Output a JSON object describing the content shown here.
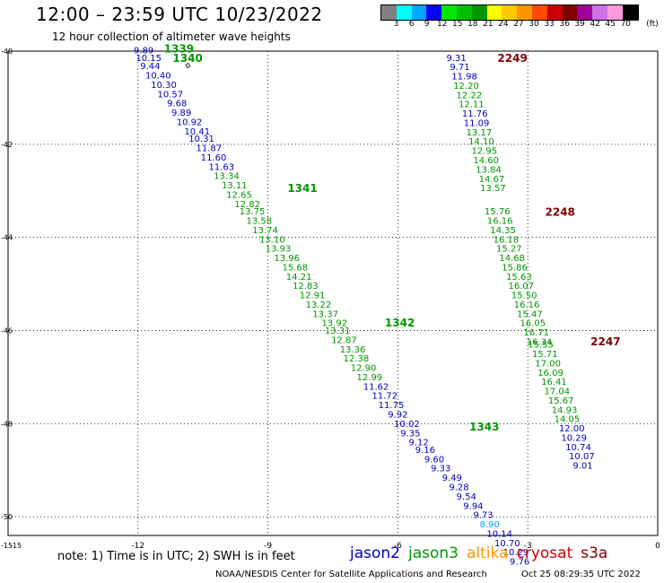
{
  "title": "12:00 – 23:59 UTC 10/23/2022",
  "subtitle": "12 hour collection of altimeter wave heights",
  "legend": {
    "unit": "(ft)",
    "colors": [
      "#7f7f7f",
      "#00ffff",
      "#00a6ff",
      "#0000ff",
      "#00e600",
      "#00be00",
      "#009600",
      "#ffff00",
      "#ffc800",
      "#ff9600",
      "#ff4b00",
      "#cc0000",
      "#800000",
      "#a0009a",
      "#cd73e6",
      "#ff9bdc",
      "#000000"
    ],
    "labels": [
      "3",
      "6",
      "9",
      "12",
      "15",
      "18",
      "21",
      "24",
      "27",
      "30",
      "33",
      "36",
      "39",
      "42",
      "45",
      "70"
    ]
  },
  "axes": {
    "x_ticks": [
      "-12",
      "-9",
      "-6",
      "-3",
      "0"
    ],
    "y_ticks": [
      "-40",
      "-42",
      "-44",
      "-46",
      "-48",
      "-50"
    ],
    "corner_labels": [
      "-15",
      "-15"
    ]
  },
  "mission_colors": {
    "jason2": "#0000bb",
    "jason3": "#009600",
    "altika": "#ff9600",
    "cryosat": "#cc0000",
    "s3a": "#800000",
    "other": "#00a6ff"
  },
  "tracks": [
    {
      "id": "1339",
      "mission": "jason3",
      "label": {
        "text": "1339",
        "lon": -11.4,
        "lat": -39.95
      },
      "points": [
        [
          "9.89",
          "jason2",
          -12.1,
          -39.97
        ]
      ]
    },
    {
      "id": "1340",
      "mission": "jason3",
      "label": {
        "text": "1340",
        "lon": -11.2,
        "lat": -40.15
      },
      "points": [
        [
          "10.15",
          "jason2",
          -12.05,
          -40.13
        ],
        [
          "9.44",
          "jason2",
          -11.95,
          -40.31
        ],
        [
          "10.40",
          "jason2",
          -11.83,
          -40.51
        ],
        [
          "10.30",
          "jason2",
          -11.7,
          -40.71
        ],
        [
          "10.57",
          "jason2",
          -11.55,
          -40.91
        ],
        [
          "9.68",
          "jason2",
          -11.33,
          -41.11
        ],
        [
          "9.89",
          "jason2",
          -11.23,
          -41.31
        ],
        [
          "10.92",
          "jason2",
          -11.11,
          -41.51
        ],
        [
          "10.41",
          "jason2",
          -10.93,
          -41.71
        ],
        [
          "10.31",
          "jason2",
          -10.83,
          -41.87
        ],
        [
          "11.87",
          "jason2",
          -10.66,
          -42.07
        ],
        [
          "11.60",
          "jason2",
          -10.55,
          -42.27
        ],
        [
          "11.63",
          "jason2",
          -10.37,
          -42.47
        ],
        [
          "13.34",
          "jason3",
          -10.25,
          -42.67
        ],
        [
          "13.11",
          "jason3",
          -10.07,
          -42.87
        ],
        [
          "12.65",
          "jason3",
          -9.96,
          -43.07
        ],
        [
          "12.82",
          "jason3",
          -9.77,
          -43.27
        ],
        [
          "13.75",
          "jason3",
          -9.66,
          -43.43
        ],
        [
          "13.58",
          "jason3",
          -9.5,
          -43.63
        ],
        [
          "13.74",
          "jason3",
          -9.36,
          -43.83
        ],
        [
          "13.10",
          "jason3",
          -9.2,
          -44.03
        ],
        [
          "13.93",
          "jason3",
          -9.06,
          -44.23
        ],
        [
          "13.96",
          "jason3",
          -8.86,
          -44.43
        ]
      ]
    },
    {
      "id": "1341",
      "mission": "jason3",
      "label": {
        "text": "1341",
        "lon": -8.55,
        "lat": -42.95
      },
      "points": [
        [
          "15.68",
          "jason3",
          -8.67,
          -44.63
        ],
        [
          "14.21",
          "jason3",
          -8.58,
          -44.83
        ],
        [
          "12.83",
          "jason3",
          -8.43,
          -45.03
        ],
        [
          "12.91",
          "jason3",
          -8.27,
          -45.23
        ],
        [
          "13.22",
          "jason3",
          -8.13,
          -45.43
        ],
        [
          "13.37",
          "jason3",
          -7.97,
          -45.63
        ],
        [
          "13.92",
          "jason3",
          -7.76,
          -45.83
        ],
        [
          "13.31",
          "jason3",
          -7.69,
          -45.99
        ],
        [
          "12.87",
          "jason3",
          -7.54,
          -46.19
        ],
        [
          "13.36",
          "jason3",
          -7.34,
          -46.39
        ],
        [
          "12.38",
          "jason3",
          -7.26,
          -46.59
        ],
        [
          "12.90",
          "jason3",
          -7.09,
          -46.79
        ],
        [
          "12.99",
          "jason3",
          -6.95,
          -46.99
        ]
      ]
    },
    {
      "id": "1342",
      "mission": "jason3",
      "label": {
        "text": "1342",
        "lon": -6.3,
        "lat": -45.84
      },
      "points": [
        [
          "11.62",
          "jason2",
          -6.8,
          -47.19
        ],
        [
          "11.72",
          "jason2",
          -6.6,
          -47.39
        ],
        [
          "11.75",
          "jason2",
          -6.45,
          -47.59
        ],
        [
          "9.92",
          "jason2",
          -6.23,
          -47.79
        ],
        [
          "10.02",
          "jason2",
          -6.09,
          -47.99
        ],
        [
          "9.35",
          "jason2",
          -5.94,
          -48.19
        ],
        [
          "9.12",
          "jason2",
          -5.75,
          -48.39
        ],
        [
          "9.16",
          "jason2",
          -5.6,
          -48.55
        ],
        [
          "9.60",
          "jason2",
          -5.39,
          -48.75
        ],
        [
          "9.33",
          "jason2",
          -5.24,
          -48.95
        ],
        [
          "9.49",
          "jason2",
          -4.98,
          -49.15
        ],
        [
          "9.28",
          "jason2",
          -4.82,
          -49.35
        ],
        [
          "9.54",
          "jason2",
          -4.65,
          -49.55
        ],
        [
          "9.94",
          "jason2",
          -4.49,
          -49.75
        ],
        [
          "9.73",
          "jason2",
          -4.26,
          -49.95
        ],
        [
          "8.90",
          "other",
          -4.11,
          -50.15
        ],
        [
          "10.14",
          "jason2",
          -3.95,
          -50.35
        ],
        [
          "10.70",
          "jason2",
          -3.77,
          -50.55
        ],
        [
          "10.29",
          "jason2",
          -3.57,
          -50.75
        ],
        [
          "9.76",
          "jason2",
          -3.42,
          -50.95
        ]
      ]
    },
    {
      "id": "1343",
      "mission": "jason3",
      "label": {
        "text": "1343",
        "lon": -4.35,
        "lat": -48.07
      },
      "points": []
    },
    {
      "id": "2249",
      "mission": "s3a",
      "label": {
        "text": "2249",
        "lon": -3.7,
        "lat": -40.15
      },
      "points": [
        [
          "9.31",
          "jason2",
          -4.88,
          -40.13
        ],
        [
          "9.71",
          "jason2",
          -4.8,
          -40.33
        ],
        [
          "11.98",
          "jason2",
          -4.76,
          -40.53
        ],
        [
          "12.20",
          "jason3",
          -4.72,
          -40.73
        ],
        [
          "12.22",
          "jason3",
          -4.65,
          -40.93
        ],
        [
          "12.11",
          "jason3",
          -4.6,
          -41.13
        ],
        [
          "11.76",
          "jason2",
          -4.52,
          -41.33
        ],
        [
          "11.09",
          "jason2",
          -4.48,
          -41.53
        ],
        [
          "13.17",
          "jason3",
          -4.42,
          -41.73
        ],
        [
          "14.10",
          "jason3",
          -4.37,
          -41.93
        ],
        [
          "12.95",
          "jason3",
          -4.3,
          -42.13
        ],
        [
          "14.60",
          "jason3",
          -4.26,
          -42.33
        ],
        [
          "13.84",
          "jason3",
          -4.2,
          -42.53
        ],
        [
          "14.67",
          "jason3",
          -4.13,
          -42.73
        ],
        [
          "13.57",
          "jason3",
          -4.1,
          -42.93
        ]
      ]
    },
    {
      "id": "2248",
      "mission": "s3a",
      "label": {
        "text": "2248",
        "lon": -2.6,
        "lat": -43.46
      },
      "points": [
        [
          "15.76",
          "jason3",
          -4.0,
          -43.43
        ],
        [
          "16.16",
          "jason3",
          -3.94,
          -43.63
        ],
        [
          "14.35",
          "jason3",
          -3.87,
          -43.83
        ],
        [
          "16.18",
          "jason3",
          -3.8,
          -44.03
        ],
        [
          "15.27",
          "jason3",
          -3.73,
          -44.23
        ],
        [
          "14.68",
          "jason3",
          -3.66,
          -44.43
        ],
        [
          "15.86",
          "jason3",
          -3.6,
          -44.63
        ],
        [
          "15.63",
          "jason3",
          -3.5,
          -44.83
        ],
        [
          "16.07",
          "jason3",
          -3.45,
          -45.03
        ],
        [
          "15.50",
          "jason3",
          -3.38,
          -45.23
        ],
        [
          "16.16",
          "jason3",
          -3.32,
          -45.43
        ],
        [
          "15.47",
          "jason3",
          -3.25,
          -45.63
        ],
        [
          "16.05",
          "jason3",
          -3.18,
          -45.83
        ],
        [
          "16.71",
          "jason3",
          -3.1,
          -46.03
        ],
        [
          "16.34",
          "jason3",
          -3.03,
          -46.23
        ],
        [
          "15.55",
          "jason3",
          -3.0,
          -46.29
        ],
        [
          "15.71",
          "jason3",
          -2.9,
          -46.49
        ],
        [
          "17.00",
          "jason3",
          -2.83,
          -46.69
        ],
        [
          "16.09",
          "jason3",
          -2.77,
          -46.89
        ],
        [
          "16.41",
          "jason3",
          -2.69,
          -47.09
        ],
        [
          "17.04",
          "jason3",
          -2.62,
          -47.29
        ],
        [
          "15.67",
          "jason3",
          -2.53,
          -47.49
        ],
        [
          "14.93",
          "jason3",
          -2.45,
          -47.69
        ],
        [
          "14.05",
          "jason3",
          -2.39,
          -47.89
        ],
        [
          "12.00",
          "jason2",
          -2.28,
          -48.09
        ],
        [
          "10.29",
          "jason2",
          -2.23,
          -48.29
        ],
        [
          "10.74",
          "jason2",
          -2.13,
          -48.49
        ],
        [
          "10.07",
          "jason2",
          -2.05,
          -48.69
        ],
        [
          "9.01",
          "jason2",
          -1.96,
          -48.89
        ]
      ]
    },
    {
      "id": "2247",
      "mission": "s3a",
      "label": {
        "text": "2247",
        "lon": -1.55,
        "lat": -46.24
      },
      "points": []
    }
  ],
  "note": "note: 1) Time is in UTC; 2) SWH is in feet",
  "missions": [
    "jason2",
    "jason3",
    "altika",
    "cryosat",
    "s3a"
  ],
  "credit": "NOAA/NESDIS Center for Satellite Applications and Research",
  "timestamp": "Oct 25 08:29:35 UTC 2022"
}
